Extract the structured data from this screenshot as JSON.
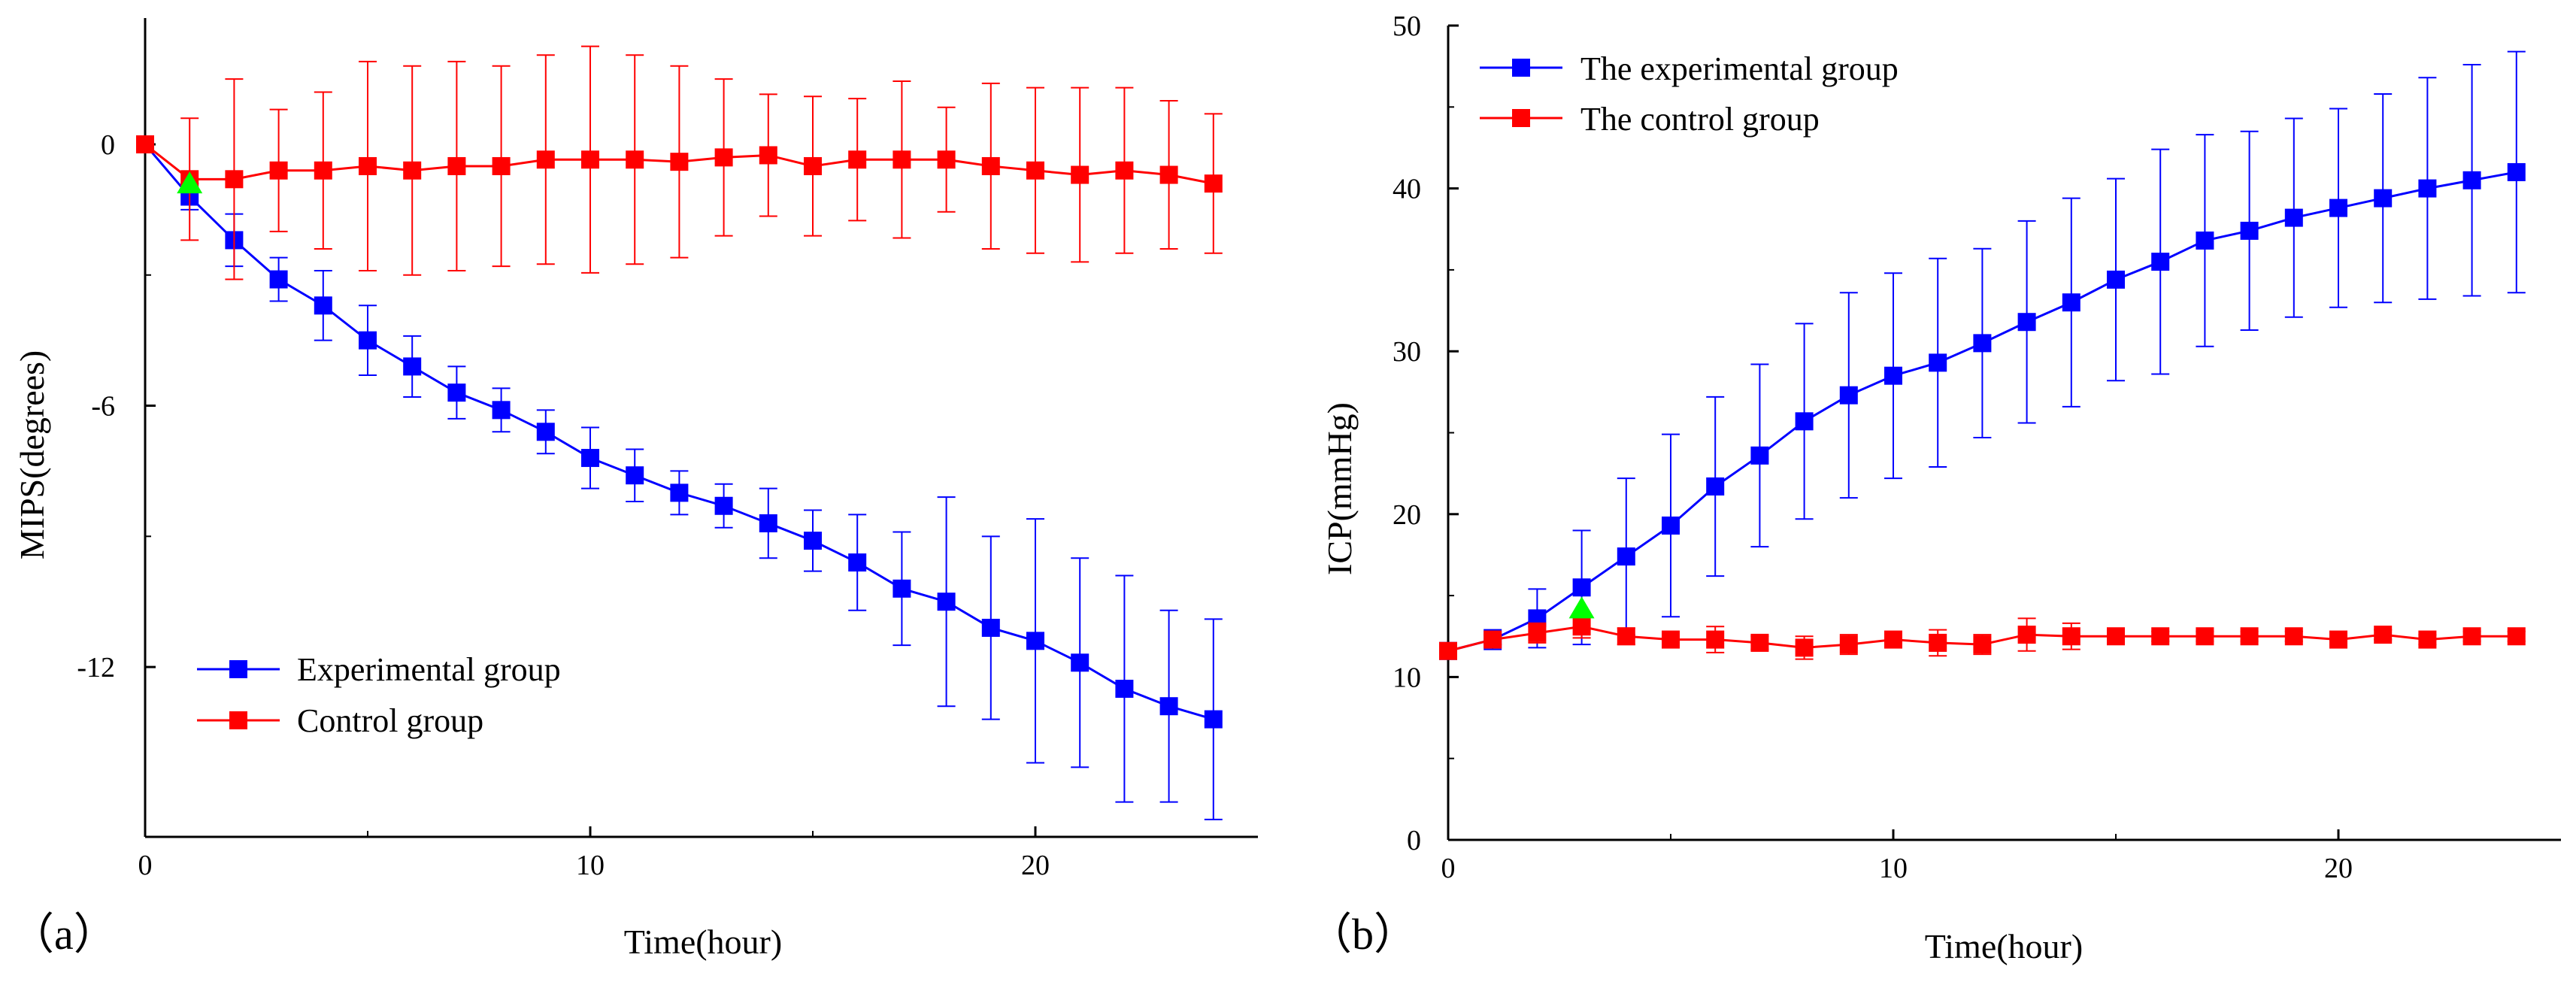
{
  "chart_data": [
    {
      "type": "line",
      "panel_label": "（a）",
      "xlabel": "Time(hour)",
      "ylabel": "MIPS(degrees)",
      "xlim": [
        0,
        25
      ],
      "ylim": [
        -15.9,
        2.9
      ],
      "xticks": [
        0,
        10,
        20
      ],
      "yticks": [
        0,
        -6,
        -12
      ],
      "xtick_labels": [
        "0",
        "10",
        "20"
      ],
      "ytick_labels": [
        "0",
        "-6",
        "-12"
      ],
      "legend_position": "bottom-left",
      "x": [
        0,
        1,
        2,
        3,
        4,
        5,
        6,
        7,
        8,
        9,
        10,
        11,
        12,
        13,
        14,
        15,
        16,
        17,
        18,
        19,
        20,
        21,
        22,
        23,
        24
      ],
      "series": [
        {
          "name": "Experimental group",
          "color": "#0000ff",
          "values": [
            0,
            -1.2,
            -2.2,
            -3.1,
            -3.7,
            -4.5,
            -5.1,
            -5.7,
            -6.1,
            -6.6,
            -7.2,
            -7.6,
            -8.0,
            -8.3,
            -8.7,
            -9.1,
            -9.6,
            -10.2,
            -10.5,
            -11.1,
            -11.4,
            -11.9,
            -12.5,
            -12.9,
            -13.2
          ],
          "errors": [
            0,
            0.3,
            0.6,
            0.5,
            0.8,
            0.8,
            0.7,
            0.6,
            0.5,
            0.5,
            0.7,
            0.6,
            0.5,
            0.5,
            0.8,
            0.7,
            1.1,
            1.3,
            2.4,
            2.1,
            2.8,
            2.4,
            2.6,
            2.2,
            2.3
          ]
        },
        {
          "name": "Control group",
          "color": "#ff0000",
          "values": [
            0,
            -0.8,
            -0.8,
            -0.6,
            -0.6,
            -0.5,
            -0.6,
            -0.5,
            -0.5,
            -0.35,
            -0.35,
            -0.35,
            -0.4,
            -0.3,
            -0.25,
            -0.5,
            -0.35,
            -0.35,
            -0.35,
            -0.5,
            -0.6,
            -0.7,
            -0.6,
            -0.7,
            -0.9
          ],
          "errors": [
            0,
            1.4,
            2.3,
            1.4,
            1.8,
            2.4,
            2.4,
            2.4,
            2.3,
            2.4,
            2.6,
            2.4,
            2.2,
            1.8,
            1.4,
            1.6,
            1.4,
            1.8,
            1.2,
            1.9,
            1.9,
            2.0,
            1.9,
            1.7,
            1.6
          ]
        }
      ],
      "marker": {
        "name": "green-triangle",
        "x": 1,
        "y": -0.9,
        "color": "#00ff00"
      }
    },
    {
      "type": "line",
      "panel_label": "（b）",
      "xlabel": "Time(hour)",
      "ylabel": "ICP(mmHg)",
      "xlim": [
        0,
        25
      ],
      "ylim": [
        0,
        50
      ],
      "xticks": [
        0,
        10,
        20
      ],
      "yticks": [
        0,
        10,
        20,
        30,
        40,
        50
      ],
      "xtick_labels": [
        "0",
        "10",
        "20"
      ],
      "ytick_labels": [
        "0",
        "10",
        "20",
        "30",
        "40",
        "50"
      ],
      "legend_position": "top-left",
      "x": [
        0,
        1,
        2,
        3,
        4,
        5,
        6,
        7,
        8,
        9,
        10,
        11,
        12,
        13,
        14,
        15,
        16,
        17,
        18,
        19,
        20,
        21,
        22,
        23,
        24
      ],
      "series": [
        {
          "name": "The experimental group",
          "color": "#0000ff",
          "values": [
            11.6,
            12.3,
            13.6,
            15.5,
            17.4,
            19.3,
            21.7,
            23.6,
            25.7,
            27.3,
            28.5,
            29.3,
            30.5,
            31.8,
            33.0,
            34.4,
            35.5,
            36.8,
            37.4,
            38.2,
            38.8,
            39.4,
            40.0,
            40.5,
            41.0
          ],
          "errors": [
            0,
            0.6,
            1.8,
            3.5,
            4.8,
            5.6,
            5.5,
            5.6,
            6.0,
            6.3,
            6.3,
            6.4,
            5.8,
            6.2,
            6.4,
            6.2,
            6.9,
            6.5,
            6.1,
            6.1,
            6.1,
            6.4,
            6.8,
            7.1,
            7.4
          ]
        },
        {
          "name": "The control group",
          "color": "#ff0000",
          "values": [
            11.6,
            12.3,
            12.7,
            13.1,
            12.5,
            12.3,
            12.3,
            12.1,
            11.8,
            12.0,
            12.3,
            12.1,
            12.0,
            12.6,
            12.5,
            12.5,
            12.5,
            12.5,
            12.5,
            12.5,
            12.3,
            12.6,
            12.3,
            12.5,
            12.5
          ],
          "errors": [
            0,
            0.3,
            0.6,
            0.7,
            0.5,
            0.4,
            0.8,
            0.4,
            0.7,
            0.6,
            0.3,
            0.8,
            0.6,
            1.0,
            0.8,
            0.4,
            0.3,
            0.3,
            0.3,
            0.3,
            0.3,
            0.3,
            0.3,
            0.3,
            0.3
          ]
        }
      ],
      "marker": {
        "name": "green-triangle",
        "x": 3,
        "y": 14.2,
        "color": "#00ff00"
      }
    }
  ]
}
